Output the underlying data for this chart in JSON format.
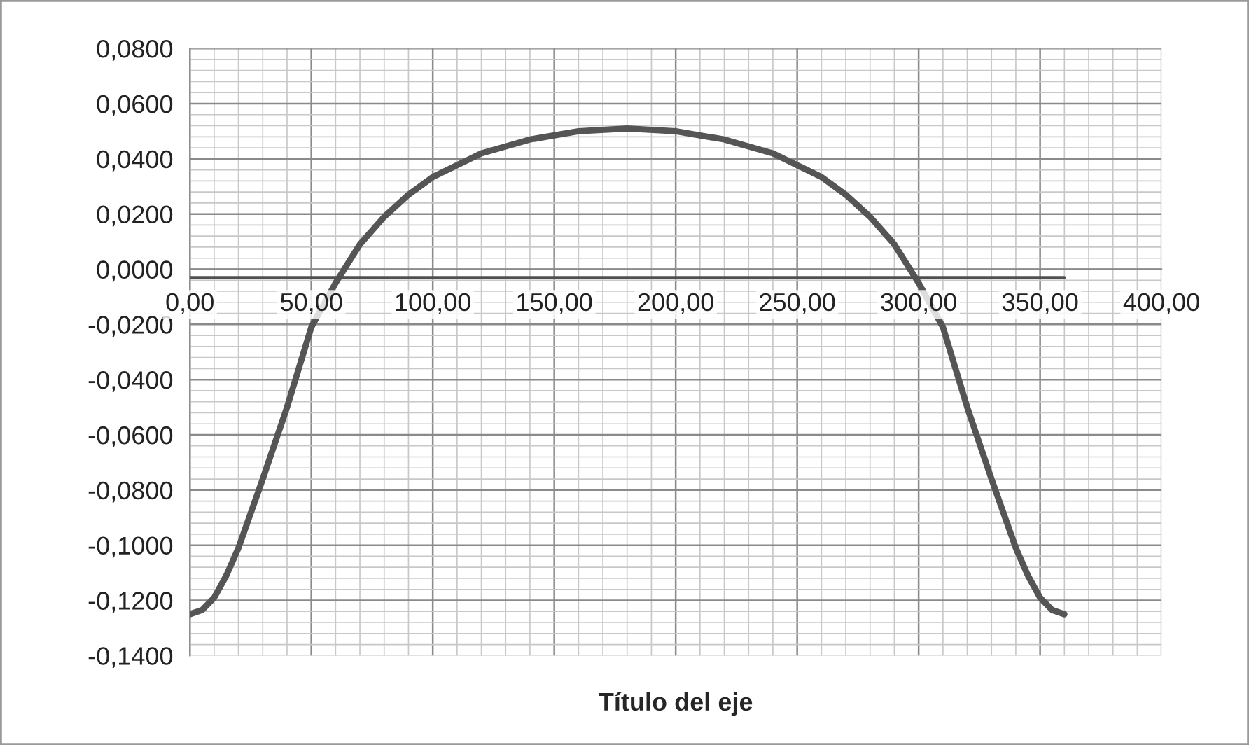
{
  "chart_data": {
    "type": "line",
    "xlabel": "Título del eje",
    "xlim": [
      0,
      400
    ],
    "ylim": [
      -0.14,
      0.08
    ],
    "xticks": [
      {
        "value": 0,
        "label": "0,00"
      },
      {
        "value": 50,
        "label": "50,00"
      },
      {
        "value": 100,
        "label": "100,00"
      },
      {
        "value": 150,
        "label": "150,00"
      },
      {
        "value": 200,
        "label": "200,00"
      },
      {
        "value": 250,
        "label": "250,00"
      },
      {
        "value": 300,
        "label": "300,00"
      },
      {
        "value": 350,
        "label": "350,00"
      },
      {
        "value": 400,
        "label": "400,00"
      }
    ],
    "yticks": [
      {
        "value": -0.14,
        "label": "-0,1400"
      },
      {
        "value": -0.12,
        "label": "-0,1200"
      },
      {
        "value": -0.1,
        "label": "-0,1000"
      },
      {
        "value": -0.08,
        "label": "-0,0800"
      },
      {
        "value": -0.06,
        "label": "-0,0600"
      },
      {
        "value": -0.04,
        "label": "-0,0400"
      },
      {
        "value": -0.02,
        "label": "-0,0200"
      },
      {
        "value": 0,
        "label": "0,0000"
      },
      {
        "value": 0.02,
        "label": "0,0200"
      },
      {
        "value": 0.04,
        "label": "0,0400"
      },
      {
        "value": 0.06,
        "label": "0,0600"
      },
      {
        "value": 0.08,
        "label": "0,0800"
      }
    ],
    "grid": true,
    "marker": "none",
    "line_style": "solid",
    "legend": false,
    "series": [
      {
        "color": "#555555",
        "x": [
          0,
          5,
          10,
          15,
          20,
          30,
          40,
          50,
          60,
          70,
          80,
          90,
          100,
          120,
          140,
          160,
          180,
          200,
          220,
          240,
          260,
          270,
          280,
          290,
          300,
          310,
          320,
          330,
          340,
          345,
          350,
          355,
          360
        ],
        "values": [
          -0.125,
          -0.1235,
          -0.119,
          -0.111,
          -0.101,
          -0.076,
          -0.05,
          -0.021,
          -0.005,
          0.009,
          0.019,
          0.027,
          0.0334,
          0.042,
          0.047,
          0.05,
          0.051,
          0.05,
          0.047,
          0.042,
          0.0334,
          0.027,
          0.019,
          0.009,
          -0.005,
          -0.021,
          -0.05,
          -0.076,
          -0.101,
          -0.111,
          -0.119,
          -0.1235,
          -0.125
        ]
      },
      {
        "color": "#505050",
        "x": [
          0,
          360
        ],
        "values": [
          -0.003,
          -0.003
        ]
      }
    ]
  }
}
